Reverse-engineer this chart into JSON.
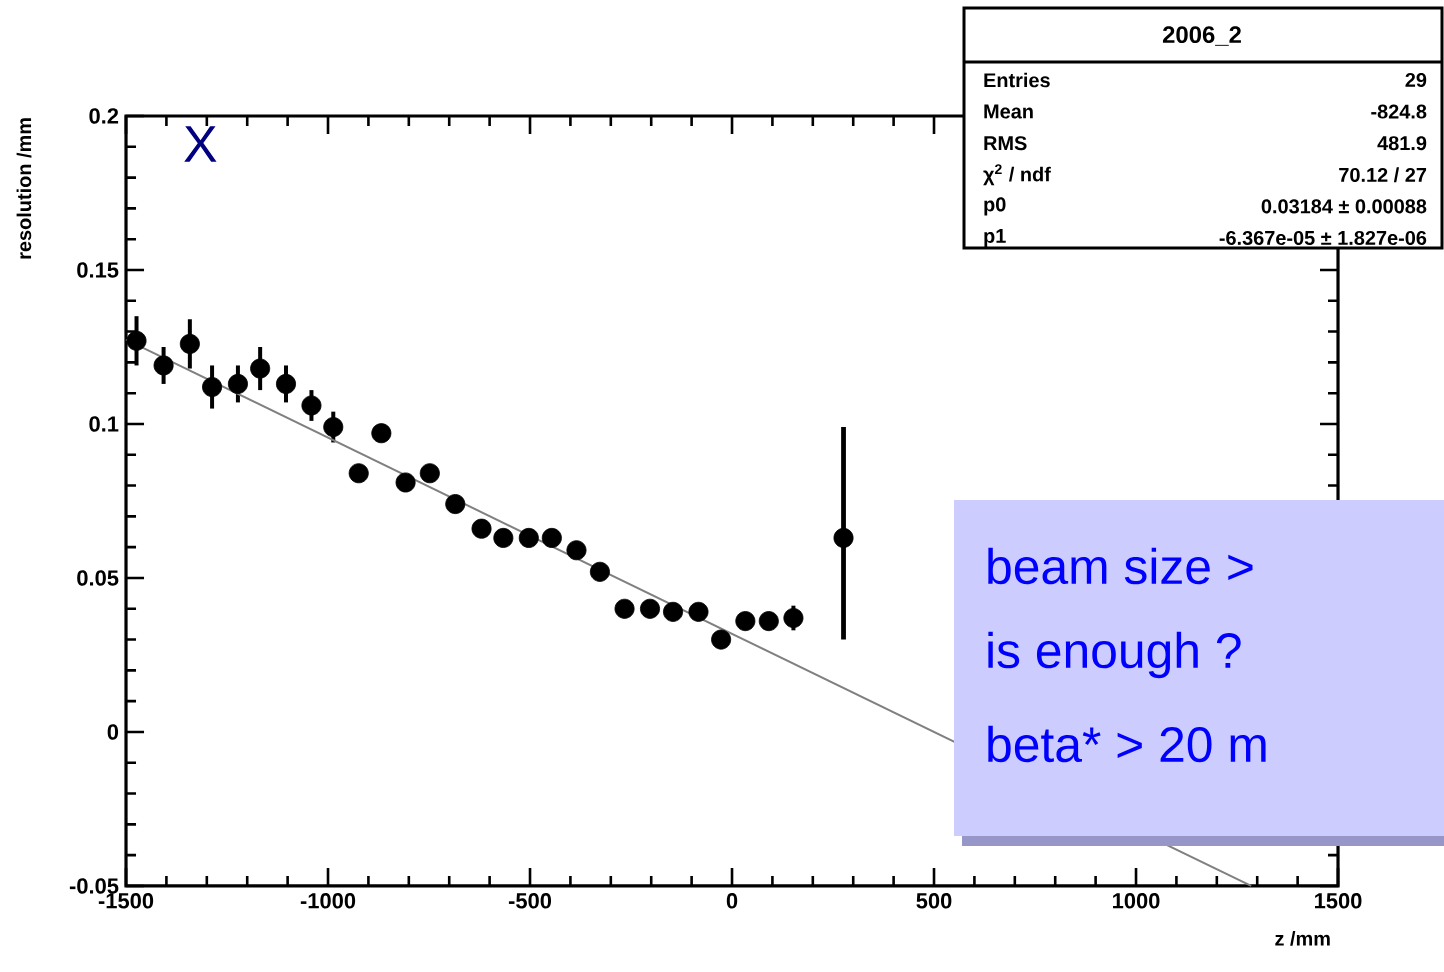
{
  "chart_data": {
    "type": "scatter",
    "title": "2006_2",
    "xlabel": "z /mm",
    "ylabel": "resolution /mm",
    "xlim": [
      -1500,
      1500
    ],
    "ylim": [
      -0.05,
      0.2
    ],
    "xticks": [
      -1500,
      -1000,
      -500,
      0,
      500,
      1000,
      1500
    ],
    "yticks": [
      -0.05,
      0,
      0.05,
      0.1,
      0.15,
      0.2
    ],
    "grid": false,
    "series": [
      {
        "marker": "circle",
        "color": "#000000",
        "x": [
          -1474,
          -1407,
          -1342,
          -1287,
          -1223,
          -1168,
          -1104,
          -1041,
          -987,
          -924,
          -868,
          -808,
          -748,
          -685,
          -620,
          -566,
          -503,
          -446,
          -385,
          -327,
          -266,
          -203,
          -146,
          -83,
          -27,
          33,
          91,
          152,
          276
        ],
        "values": [
          0.127,
          0.119,
          0.126,
          0.112,
          0.113,
          0.118,
          0.113,
          0.106,
          0.099,
          0.084,
          0.097,
          0.081,
          0.084,
          0.074,
          0.066,
          0.063,
          0.063,
          0.063,
          0.059,
          0.052,
          0.04,
          0.04,
          0.039,
          0.039,
          0.03,
          0.036,
          0.036,
          0.037,
          0.063
        ],
        "errors": [
          0.008,
          0.006,
          0.008,
          0.007,
          0.006,
          0.007,
          0.006,
          0.005,
          0.005,
          null,
          null,
          null,
          null,
          null,
          null,
          null,
          null,
          null,
          null,
          null,
          null,
          null,
          null,
          null,
          null,
          null,
          null,
          0.004,
          [
            0.03,
            0.099
          ]
        ]
      },
      {
        "type": "line",
        "marker": "none",
        "color": "#808080",
        "x": [
          -1500,
          1285
        ],
        "values": [
          0.1274,
          -0.05
        ]
      }
    ],
    "annotations": [
      "X",
      "Entries",
      "29",
      "Mean",
      "-824.8",
      "RMS",
      "481.9",
      "χ$^{2}$ / ndf",
      "70.12 / 27",
      "p0",
      "0.03184 ± 0.00088",
      "p1",
      "-6.367e-05 ± 1.827e-06",
      "beam size >",
      "is enough ?",
      "beta* > 20 m"
    ]
  }
}
